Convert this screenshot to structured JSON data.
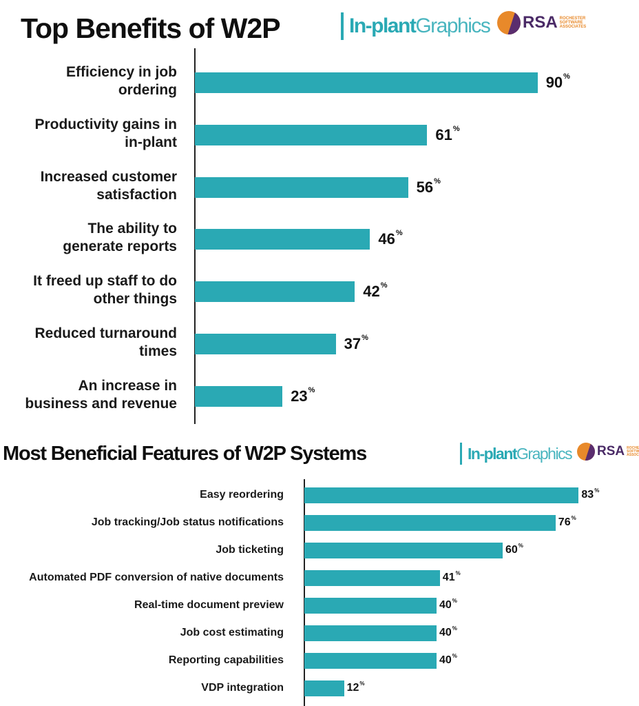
{
  "chart_data": [
    {
      "type": "bar",
      "title": "Top Benefits of W2P",
      "categories": [
        [
          "Efficiency in job",
          "ordering"
        ],
        [
          "Productivity gains in",
          "in-plant"
        ],
        [
          "Increased customer",
          "satisfaction"
        ],
        [
          "The ability to",
          "generate reports"
        ],
        [
          "It freed up staff to do",
          "other things"
        ],
        [
          "Reduced turnaround",
          "times"
        ],
        [
          "An increase in",
          "business and revenue"
        ]
      ],
      "values": [
        90,
        61,
        56,
        46,
        42,
        37,
        23
      ],
      "value_suffix": "%",
      "bar_color": "#2aa9b4",
      "orientation": "horizontal"
    },
    {
      "type": "bar",
      "title": "Most Beneficial Features of W2P Systems",
      "categories": [
        "Easy reordering",
        "Job tracking/Job status notifications",
        "Job ticketing",
        "Automated PDF conversion of native documents",
        "Real-time document preview",
        "Job cost estimating",
        "Reporting capabilities",
        "VDP integration"
      ],
      "values": [
        83,
        76,
        60,
        41,
        40,
        40,
        40,
        12
      ],
      "value_suffix": "%",
      "bar_color": "#2aa9b4",
      "orientation": "horizontal"
    }
  ],
  "logos": {
    "inplant_bold": "In-plant",
    "inplant_light": "Graphics",
    "rsa": "RSA",
    "rsa_sub": [
      "ROCHESTER",
      "SOFTWARE",
      "ASSOCIATES"
    ]
  },
  "colors": {
    "accent": "#2aa9b4",
    "rsa_orange": "#e8892a",
    "rsa_purple": "#5a2d6e"
  }
}
